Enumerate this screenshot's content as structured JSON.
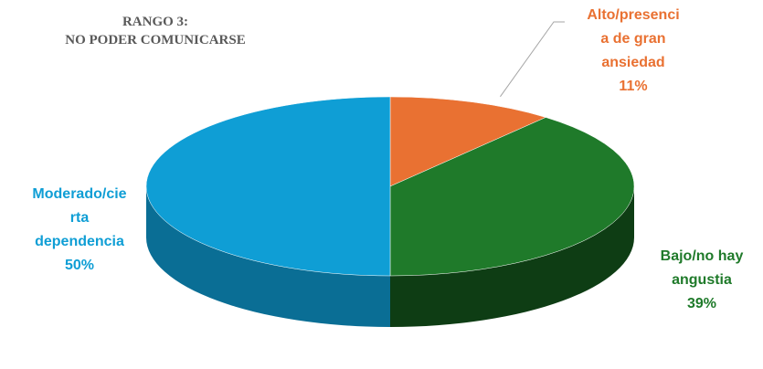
{
  "chart_data": {
    "type": "pie",
    "title_lines": [
      "RANGO 3:",
      "NO PODER COMUNICARSE"
    ],
    "slices": [
      {
        "label_lines": [
          "Alto/presenci",
          "a de gran",
          "ansiedad"
        ],
        "value": 11,
        "value_label": "11%",
        "color": "#E97132",
        "side_color": "#A04A1D"
      },
      {
        "label_lines": [
          "Bajo/no hay",
          "angustia"
        ],
        "value": 39,
        "value_label": "39%",
        "color": "#1F7A2A",
        "side_color": "#0E3D14"
      },
      {
        "label_lines": [
          "Moderado/cie",
          "rta",
          "dependencia"
        ],
        "value": 50,
        "value_label": "50%",
        "color": "#0F9ED5",
        "side_color": "#0A6E95"
      }
    ]
  }
}
